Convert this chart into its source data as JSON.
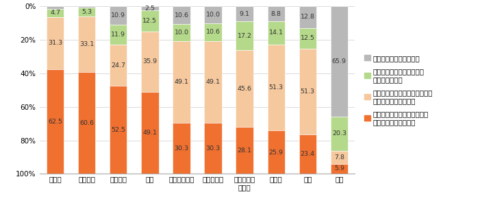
{
  "categories": [
    "ハノイ",
    "バンコク",
    "ムンバイ",
    "上海",
    "シンガポール",
    "ジャカルタ",
    "クアラルン\nプール",
    "マニラ",
    "台北",
    "東京"
  ],
  "series": [
    {
      "label": "名前も聞いたことはない",
      "color": "#b8b8b8",
      "values": [
        1.6,
        0.9,
        10.9,
        2.5,
        10.6,
        10.0,
        9.1,
        8.8,
        12.8,
        65.9
      ]
    },
    {
      "label": "名前は聞いたことはあるが\nよくわからない",
      "color": "#b5d98b",
      "values": [
        4.7,
        5.3,
        11.9,
        12.5,
        10.0,
        10.6,
        17.2,
        14.1,
        12.5,
        20.3
      ]
    },
    {
      "label": "知っているが、ライブコマース\nで購入したことがない",
      "color": "#f5c89e",
      "values": [
        31.3,
        33.1,
        24.7,
        35.9,
        49.1,
        49.1,
        45.6,
        51.3,
        51.3,
        7.8
      ]
    },
    {
      "label": "知っており、ライブコマース\nで購入したことがある",
      "color": "#f07030",
      "values": [
        62.5,
        60.6,
        52.5,
        49.1,
        30.3,
        30.3,
        28.1,
        25.9,
        23.4,
        5.9
      ]
    }
  ],
  "ylabel_ticks": [
    "0%",
    "20%",
    "40%",
    "60%",
    "80%",
    "100%"
  ],
  "background_color": "#ffffff",
  "bar_width": 0.55,
  "legend_fontsize": 7.5,
  "tick_fontsize": 7.5,
  "label_fontsize": 6.8,
  "category_fontsize": 7.5
}
